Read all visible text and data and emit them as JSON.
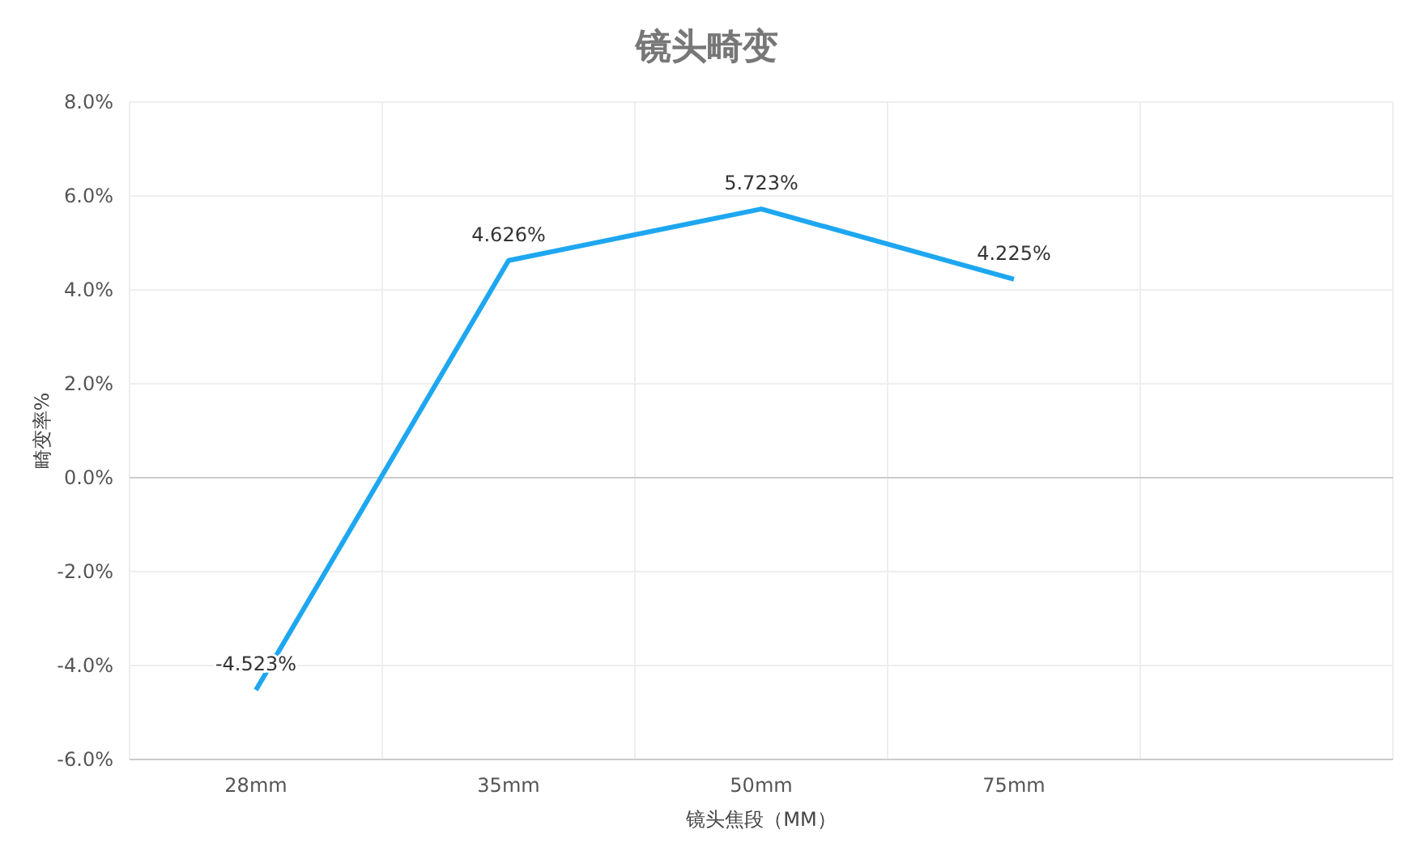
{
  "chart_data": {
    "type": "line",
    "title": "镜头畸变",
    "xlabel": "镜头焦段（MM）",
    "ylabel": "畸变率%",
    "categories": [
      "28mm",
      "35mm",
      "50mm",
      "75mm",
      null
    ],
    "series": [
      {
        "color": "#1ea7f0",
        "values": [
          -4.523,
          4.626,
          5.723,
          4.225,
          null
        ],
        "value_labels": [
          "-4.523%",
          "4.626%",
          "5.723%",
          "4.225%",
          null
        ]
      }
    ],
    "ylim": [
      -6,
      8
    ],
    "yticks": [
      {
        "value": -6,
        "label": "-6.0%"
      },
      {
        "value": -4,
        "label": "-4.0%"
      },
      {
        "value": -2,
        "label": "-2.0%"
      },
      {
        "value": 0,
        "label": "0.0%"
      },
      {
        "value": 2,
        "label": "2.0%"
      },
      {
        "value": 4,
        "label": "4.0%"
      },
      {
        "value": 6,
        "label": "6.0%"
      },
      {
        "value": 8,
        "label": "8.0%"
      }
    ],
    "grid": true,
    "marker": "none",
    "line_style": "solid"
  }
}
